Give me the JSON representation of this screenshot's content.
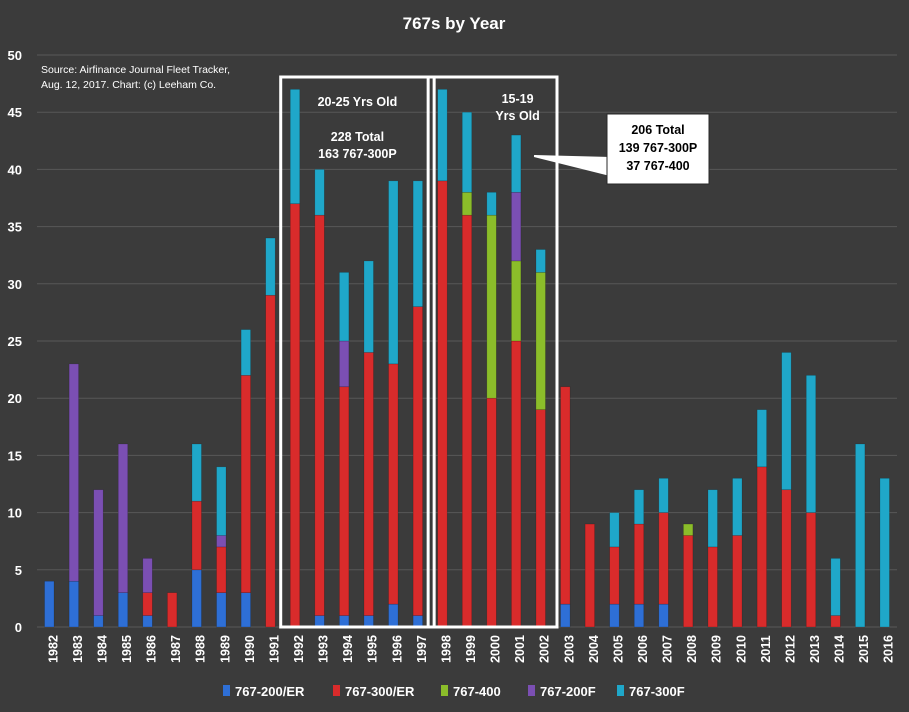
{
  "chart_data": {
    "type": "bar",
    "stacked": true,
    "title": "767s by Year",
    "source_lines": [
      "Source: Airfinance Journal Fleet Tracker,",
      "Aug. 12, 2017. Chart: (c) Leeham Co."
    ],
    "ylim": [
      0,
      50
    ],
    "yticks": [
      0,
      5,
      10,
      15,
      20,
      25,
      30,
      35,
      40,
      45,
      50
    ],
    "grid": true,
    "legend_position": "bottom",
    "categories": [
      "1982",
      "1983",
      "1984",
      "1985",
      "1986",
      "1987",
      "1988",
      "1989",
      "1990",
      "1991",
      "1992",
      "1993",
      "1994",
      "1995",
      "1996",
      "1997",
      "1998",
      "1999",
      "2000",
      "2001",
      "2002",
      "2003",
      "2004",
      "2005",
      "2006",
      "2007",
      "2008",
      "2009",
      "2010",
      "2011",
      "2012",
      "2013",
      "2014",
      "2015",
      "2016"
    ],
    "series": [
      {
        "name": "767-200/ER",
        "color": "#2e6fd6",
        "values": [
          4,
          4,
          1,
          3,
          1,
          0,
          5,
          3,
          3,
          0,
          0,
          1,
          1,
          1,
          2,
          1,
          0,
          0,
          0,
          0,
          0,
          2,
          0,
          2,
          2,
          2,
          0,
          0,
          0,
          0,
          0,
          0,
          0,
          0,
          0
        ]
      },
      {
        "name": "767-300/ER",
        "color": "#d92b2b",
        "values": [
          0,
          0,
          0,
          0,
          2,
          3,
          6,
          4,
          19,
          29,
          37,
          35,
          20,
          23,
          21,
          27,
          39,
          36,
          20,
          25,
          19,
          19,
          9,
          5,
          7,
          8,
          8,
          7,
          8,
          14,
          12,
          10,
          1,
          0,
          0
        ]
      },
      {
        "name": "767-400",
        "color": "#8bbd2a",
        "values": [
          0,
          0,
          0,
          0,
          0,
          0,
          0,
          0,
          0,
          0,
          0,
          0,
          0,
          0,
          0,
          0,
          0,
          2,
          16,
          7,
          12,
          0,
          0,
          0,
          0,
          0,
          1,
          0,
          0,
          0,
          0,
          0,
          0,
          0,
          0
        ]
      },
      {
        "name": "767-200F",
        "color": "#7b4fb3",
        "values": [
          0,
          19,
          11,
          13,
          3,
          0,
          0,
          1,
          0,
          0,
          0,
          0,
          4,
          0,
          0,
          0,
          0,
          0,
          0,
          6,
          0,
          0,
          0,
          0,
          0,
          0,
          0,
          0,
          0,
          0,
          0,
          0,
          0,
          0,
          0
        ]
      },
      {
        "name": "767-300F",
        "color": "#1fa7c9",
        "values": [
          0,
          0,
          0,
          0,
          0,
          0,
          5,
          6,
          4,
          5,
          10,
          4,
          6,
          8,
          16,
          11,
          8,
          7,
          2,
          5,
          2,
          0,
          0,
          3,
          3,
          3,
          0,
          5,
          5,
          5,
          12,
          12,
          5,
          16,
          13
        ]
      }
    ],
    "annotations": [
      {
        "lines": [
          "20-25 Yrs Old",
          "",
          "228 Total",
          "163 767-300P"
        ],
        "boxed_range": [
          "1992",
          "1997"
        ]
      },
      {
        "lines": [
          "15-19",
          "Yrs Old"
        ],
        "boxed_range": [
          "1998",
          "2002"
        ]
      },
      {
        "lines": [
          "206 Total",
          "139 767-300P",
          "37 767-400"
        ],
        "points_to": "2001"
      }
    ]
  }
}
